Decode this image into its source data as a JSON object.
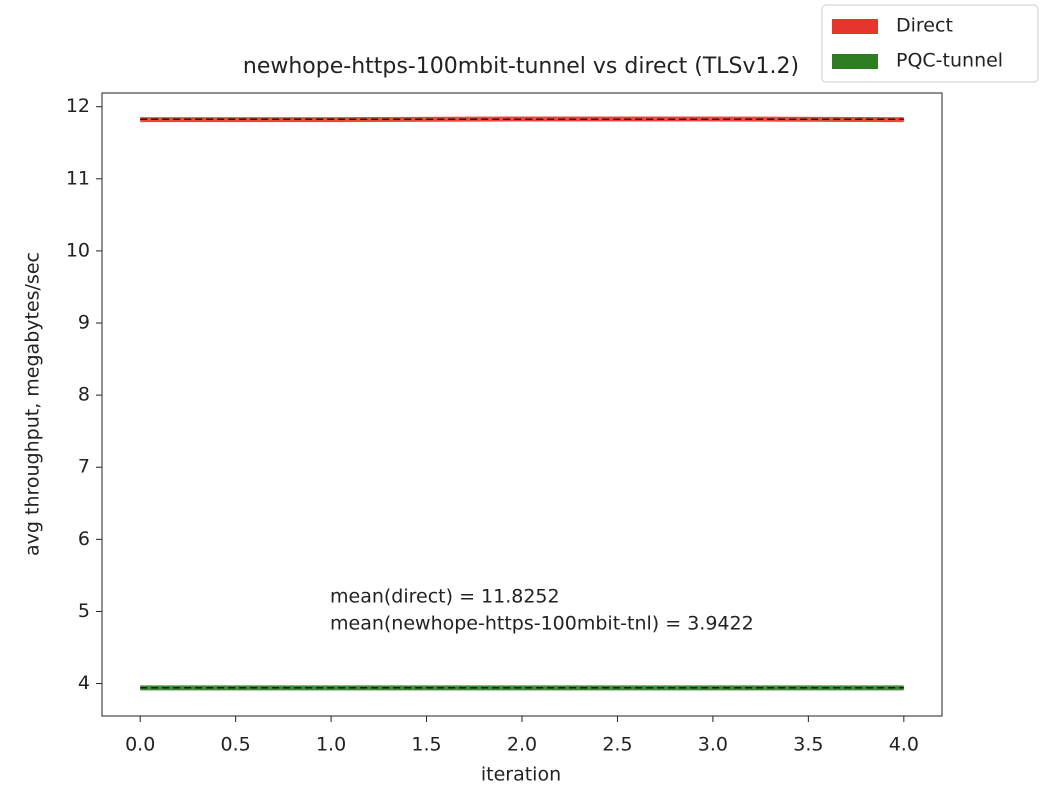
{
  "chart_data": {
    "type": "line",
    "title": "newhope-https-100mbit-tunnel vs direct (TLSv1.2)",
    "x_label": "iteration",
    "y_label": "avg throughput, megabytes/sec",
    "x": [
      0,
      1,
      2,
      3,
      4
    ],
    "series": [
      {
        "name": "Direct",
        "color": "#e8352b",
        "values": [
          11.82,
          11.82,
          11.83,
          11.83,
          11.82
        ]
      },
      {
        "name": "PQC-tunnel",
        "color": "#2e7d23",
        "values": [
          3.94,
          3.94,
          3.94,
          3.94,
          3.94
        ]
      }
    ],
    "mean_lines": [
      11.8252,
      3.9422
    ],
    "annotations": [
      "mean(direct) = 11.8252",
      "mean(newhope-https-100mbit-tnl) = 3.9422"
    ],
    "xlim": [
      -0.2,
      4.2
    ],
    "xticks": [
      {
        "value": 0,
        "label": "0.0"
      },
      {
        "value": 0.5,
        "label": "0.5"
      },
      {
        "value": 1,
        "label": "1.0"
      },
      {
        "value": 1.5,
        "label": "1.5"
      },
      {
        "value": 2,
        "label": "2.0"
      },
      {
        "value": 2.5,
        "label": "2.5"
      },
      {
        "value": 3,
        "label": "3.0"
      },
      {
        "value": 3.5,
        "label": "3.5"
      },
      {
        "value": 4,
        "label": "4.0"
      }
    ],
    "ylim": [
      3.55,
      12.19
    ],
    "yticks": [
      4,
      5,
      6,
      7,
      8,
      9,
      10,
      11,
      12
    ],
    "legend": "upper-right"
  }
}
